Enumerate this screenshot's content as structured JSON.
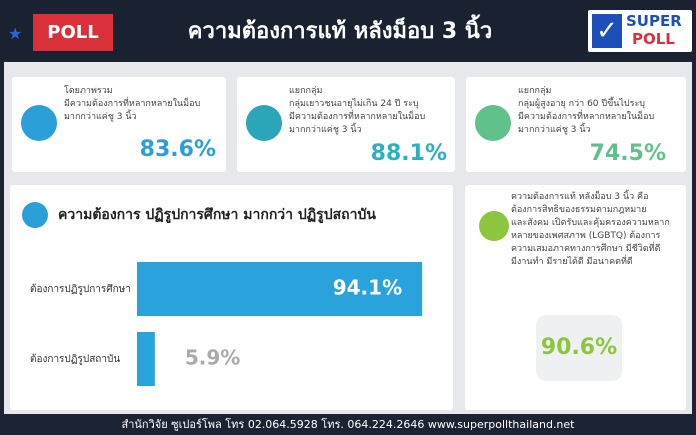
{
  "header": {
    "badge": "POLL",
    "title": "ความต้องการแท้ หลังม็อบ 3 นิ้ว",
    "logo": [
      "SUPER",
      "POLL"
    ]
  },
  "cards": [
    {
      "lines": [
        "โดยภาพรวม",
        "มีความต้องการที่หลากหลายในม็อบ",
        "มากกว่าแค่ชู 3 นิ้ว"
      ],
      "value": "83.6%"
    },
    {
      "lines": [
        "แยกกลุ่ม",
        "กลุ่มเยาวชนอายุไม่เกิน 24 ปี ระบุ",
        "มีความต้องการที่หลากหลายในม็อบ",
        "มากกว่าแค่ชู 3 นิ้ว"
      ],
      "value": "88.1%"
    },
    {
      "lines": [
        "แยกกลุ่ม",
        "กลุ่มผู้สูงอายุ กว่า 60 ปีขึ้นไประบุ",
        "มีความต้องการที่หลากหลายในม็อบ",
        "มากกว่าแค่ชู 3 นิ้ว"
      ],
      "value": "74.5%"
    }
  ],
  "chart_data": {
    "type": "bar",
    "orientation": "horizontal",
    "title": "ความต้องการ ปฏิรูปการศึกษา มากกว่า ปฏิรูปสถาบัน",
    "categories": [
      "ต้องการปฏิรูปการศึกษา",
      "ต้องการปฏิรูปสถาบัน"
    ],
    "values": [
      94.1,
      5.9
    ],
    "value_labels": [
      "94.1%",
      "5.9%"
    ],
    "color": "#2aa3dc"
  },
  "summary": {
    "lines": [
      "ความต้องการแท้ หลังม็อบ 3 นิ้ว คือ",
      "ต้องการสิทธิของธรรมตามกฎหมาย",
      "และสังคม เปิดรับและคุ้มครองความหลาก",
      "หลายของเพศสภาพ (LGBTQ) ต้องการ",
      "ความเสมอภาคทางการศึกษา มีชีวิตที่ดี",
      "มีงานทำ มีรายได้ดี มีอนาคตที่ดี"
    ],
    "value": "90.6%"
  },
  "footer": "สำนักวิจัย ซูเปอร์โพล โทร 02.064.5928 โทร. 064.224.2646 www.superpollthailand.net"
}
